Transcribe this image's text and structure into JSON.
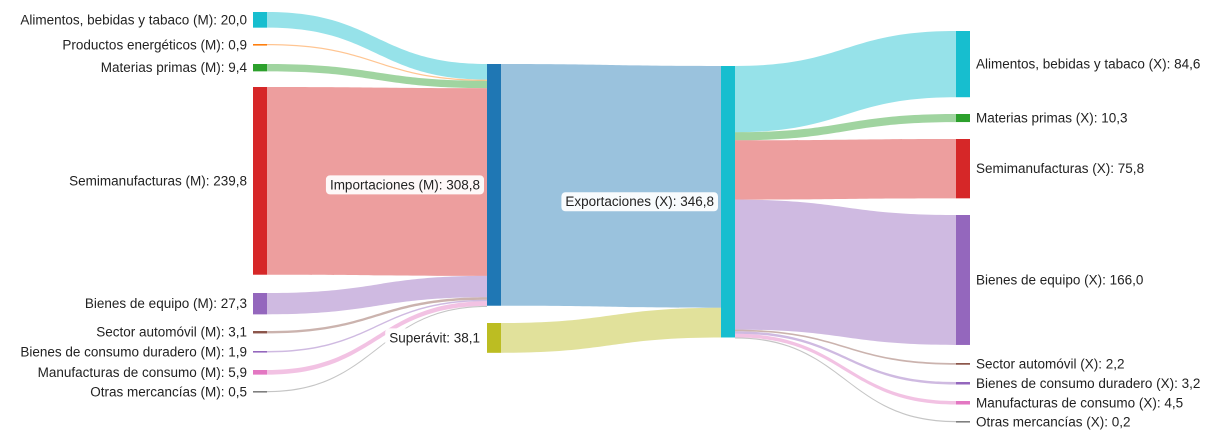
{
  "chart_data": {
    "type": "sankey",
    "title": "",
    "nodes": [
      {
        "id": "m_alim",
        "label": "Alimentos, bebidas y tabaco (M): 20,0",
        "value": 20.0,
        "color": "#17becf"
      },
      {
        "id": "m_energ",
        "label": "Productos energéticos (M): 0,9",
        "value": 0.9,
        "color": "#ff7f0e"
      },
      {
        "id": "m_mat",
        "label": "Materias primas (M): 9,4",
        "value": 9.4,
        "color": "#2ca02c"
      },
      {
        "id": "m_semi",
        "label": "Semimanufacturas (M): 239,8",
        "value": 239.8,
        "color": "#d62728"
      },
      {
        "id": "m_bienes",
        "label": "Bienes de equipo (M): 27,3",
        "value": 27.3,
        "color": "#9467bd"
      },
      {
        "id": "m_auto",
        "label": "Sector automóvil (M): 3,1",
        "value": 3.1,
        "color": "#8c564b"
      },
      {
        "id": "m_dur",
        "label": "Bienes de consumo duradero (M): 1,9",
        "value": 1.9,
        "color": "#9467bd"
      },
      {
        "id": "m_manuf",
        "label": "Manufacturas de consumo (M): 5,9",
        "value": 5.9,
        "color": "#e377c2"
      },
      {
        "id": "m_otras",
        "label": "Otras mercancías (M): 0,5",
        "value": 0.5,
        "color": "#7f7f7f"
      },
      {
        "id": "importaciones",
        "label": "Importaciones (M): 308,8",
        "value": 308.8,
        "color": "#1f77b4"
      },
      {
        "id": "superavit",
        "label": "Superávit: 38,1",
        "value": 38.1,
        "color": "#bcbd22"
      },
      {
        "id": "exportaciones",
        "label": "Exportaciones (X): 346,8",
        "value": 346.8,
        "color": "#17becf"
      },
      {
        "id": "x_alim",
        "label": "Alimentos, bebidas y tabaco (X): 84,6",
        "value": 84.6,
        "color": "#17becf"
      },
      {
        "id": "x_mat",
        "label": "Materias primas (X): 10,3",
        "value": 10.3,
        "color": "#2ca02c"
      },
      {
        "id": "x_semi",
        "label": "Semimanufacturas (X): 75,8",
        "value": 75.8,
        "color": "#d62728"
      },
      {
        "id": "x_bienes",
        "label": "Bienes de equipo (X): 166,0",
        "value": 166.0,
        "color": "#9467bd"
      },
      {
        "id": "x_auto",
        "label": "Sector automóvil (X): 2,2",
        "value": 2.2,
        "color": "#8c564b"
      },
      {
        "id": "x_dur",
        "label": "Bienes de consumo duradero (X): 3,2",
        "value": 3.2,
        "color": "#9467bd"
      },
      {
        "id": "x_manuf",
        "label": "Manufacturas de consumo (X): 4,5",
        "value": 4.5,
        "color": "#e377c2"
      },
      {
        "id": "x_otras",
        "label": "Otras mercancías (X): 0,2",
        "value": 0.2,
        "color": "#7f7f7f"
      }
    ],
    "links": [
      {
        "source": "m_alim",
        "target": "importaciones",
        "value": 20.0
      },
      {
        "source": "m_energ",
        "target": "importaciones",
        "value": 0.9
      },
      {
        "source": "m_mat",
        "target": "importaciones",
        "value": 9.4
      },
      {
        "source": "m_semi",
        "target": "importaciones",
        "value": 239.8
      },
      {
        "source": "m_bienes",
        "target": "importaciones",
        "value": 27.3
      },
      {
        "source": "m_auto",
        "target": "importaciones",
        "value": 3.1
      },
      {
        "source": "m_dur",
        "target": "importaciones",
        "value": 1.9
      },
      {
        "source": "m_manuf",
        "target": "importaciones",
        "value": 5.9
      },
      {
        "source": "m_otras",
        "target": "importaciones",
        "value": 0.5
      },
      {
        "source": "importaciones",
        "target": "exportaciones",
        "value": 308.8
      },
      {
        "source": "superavit",
        "target": "exportaciones",
        "value": 38.1
      },
      {
        "source": "exportaciones",
        "target": "x_alim",
        "value": 84.6
      },
      {
        "source": "exportaciones",
        "target": "x_mat",
        "value": 10.3
      },
      {
        "source": "exportaciones",
        "target": "x_semi",
        "value": 75.8
      },
      {
        "source": "exportaciones",
        "target": "x_bienes",
        "value": 166.0
      },
      {
        "source": "exportaciones",
        "target": "x_auto",
        "value": 2.2
      },
      {
        "source": "exportaciones",
        "target": "x_dur",
        "value": 3.2
      },
      {
        "source": "exportaciones",
        "target": "x_manuf",
        "value": 4.5
      },
      {
        "source": "exportaciones",
        "target": "x_otras",
        "value": 0.2
      }
    ]
  }
}
